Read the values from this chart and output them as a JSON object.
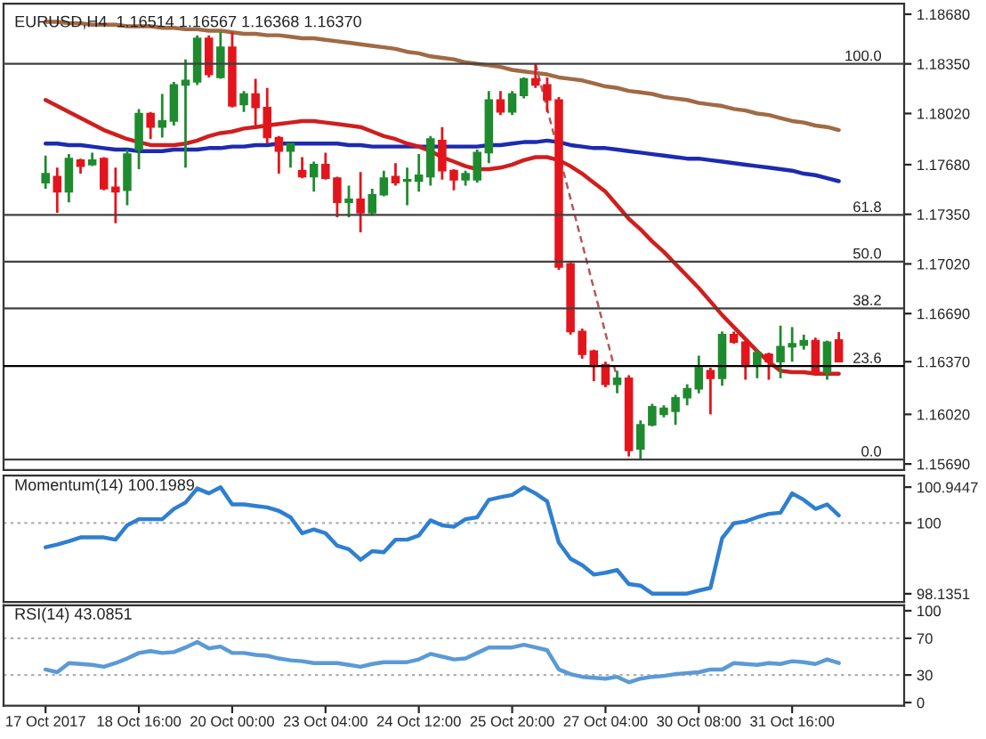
{
  "chart_data": [
    {
      "type": "candlestick",
      "title": "EURUSD,H4  1.16514 1.16567 1.16368 1.16370",
      "categories": [
        null,
        null,
        null,
        null,
        null,
        null,
        null,
        null,
        null,
        null,
        null,
        null,
        null,
        null,
        null,
        null,
        null,
        null,
        null,
        null,
        null,
        null,
        null,
        null,
        null,
        null,
        null,
        null,
        null,
        null,
        null,
        null,
        null,
        null,
        null,
        null,
        null,
        null,
        null,
        null,
        null,
        null,
        null,
        null,
        null,
        null,
        null,
        null,
        null,
        null,
        null,
        null,
        null,
        null,
        null,
        null,
        null,
        null,
        null,
        null,
        null,
        null,
        null,
        null,
        null,
        null,
        null,
        null,
        null
      ],
      "ohlc": [
        [
          1.1756,
          1.1774,
          1.1752,
          1.1762
        ],
        [
          1.176,
          1.1766,
          1.1736,
          1.175
        ],
        [
          1.175,
          1.1775,
          1.1743,
          1.1772
        ],
        [
          1.1771,
          1.1772,
          1.1762,
          1.1767
        ],
        [
          1.1768,
          1.1776,
          1.1767,
          1.1771
        ],
        [
          1.1772,
          1.1773,
          1.1751,
          1.1752
        ],
        [
          1.1753,
          1.1766,
          1.1729,
          1.175
        ],
        [
          1.1751,
          1.1778,
          1.1741,
          1.1775
        ],
        [
          1.1778,
          1.1805,
          1.1765,
          1.1802
        ],
        [
          1.1802,
          1.1803,
          1.1785,
          1.1793
        ],
        [
          1.1793,
          1.1815,
          1.1786,
          1.1797
        ],
        [
          1.1797,
          1.1823,
          1.1794,
          1.1821
        ],
        [
          1.1821,
          1.1838,
          1.1766,
          1.1824
        ],
        [
          1.1823,
          1.1854,
          1.1821,
          1.1852
        ],
        [
          1.1852,
          1.1854,
          1.1826,
          1.1828
        ],
        [
          1.1826,
          1.1856,
          1.1825,
          1.1846
        ],
        [
          1.1846,
          1.1856,
          1.1806,
          1.1807
        ],
        [
          1.1808,
          1.1817,
          1.1803,
          1.1815
        ],
        [
          1.1815,
          1.1825,
          1.1793,
          1.1806
        ],
        [
          1.1806,
          1.1819,
          1.1782,
          1.1786
        ],
        [
          1.1786,
          1.1787,
          1.1762,
          1.1777
        ],
        [
          1.1777,
          1.1782,
          1.1766,
          1.1782
        ],
        [
          1.1764,
          1.1773,
          1.1759,
          1.176
        ],
        [
          1.176,
          1.177,
          1.175,
          1.1768
        ],
        [
          1.1768,
          1.1776,
          1.1758,
          1.1759
        ],
        [
          1.1759,
          1.176,
          1.1733,
          1.1743
        ],
        [
          1.1743,
          1.1754,
          1.1733,
          1.1745
        ],
        [
          1.1745,
          1.1763,
          1.1723,
          1.1736
        ],
        [
          1.1736,
          1.1752,
          1.1734,
          1.1748
        ],
        [
          1.1748,
          1.1764,
          1.1747,
          1.1759
        ],
        [
          1.176,
          1.1769,
          1.1754,
          1.1756
        ],
        [
          1.1757,
          1.1766,
          1.1741,
          1.1758
        ],
        [
          1.1757,
          1.1775,
          1.175,
          1.1761
        ],
        [
          1.176,
          1.1787,
          1.1754,
          1.1785
        ],
        [
          1.1784,
          1.1793,
          1.1758,
          1.1764
        ],
        [
          1.1764,
          1.1765,
          1.1751,
          1.1758
        ],
        [
          1.1758,
          1.1764,
          1.1754,
          1.1762
        ],
        [
          1.1758,
          1.1778,
          1.1756,
          1.1776
        ],
        [
          1.1776,
          1.1817,
          1.1769,
          1.1811
        ],
        [
          1.1811,
          1.1817,
          1.1801,
          1.1803
        ],
        [
          1.1803,
          1.1817,
          1.1801,
          1.1815
        ],
        [
          1.1814,
          1.1826,
          1.1812,
          1.1825
        ],
        [
          1.1825,
          1.1835,
          1.1819,
          1.1821
        ],
        [
          1.1821,
          1.1826,
          1.1803,
          1.1811
        ],
        [
          1.1811,
          1.1813,
          1.1698,
          1.17
        ],
        [
          1.1702,
          1.1704,
          1.1655,
          1.1657
        ],
        [
          1.1657,
          1.1659,
          1.1639,
          1.1642
        ],
        [
          1.1644,
          1.1645,
          1.1624,
          1.1634
        ],
        [
          1.1635,
          1.1637,
          1.162,
          1.1622
        ],
        [
          1.1622,
          1.1631,
          1.1616,
          1.1626
        ],
        [
          1.1626,
          1.1628,
          1.1574,
          1.1578
        ],
        [
          1.1579,
          1.1598,
          1.1572,
          1.1595
        ],
        [
          1.1595,
          1.1609,
          1.1594,
          1.1607
        ],
        [
          1.1602,
          1.1608,
          1.16,
          1.1606
        ],
        [
          1.1604,
          1.1615,
          1.1595,
          1.1613
        ],
        [
          1.1613,
          1.1622,
          1.1608,
          1.1619
        ],
        [
          1.1619,
          1.1641,
          1.1616,
          1.1633
        ],
        [
          1.1631,
          1.1633,
          1.1602,
          1.1626
        ],
        [
          1.1626,
          1.1657,
          1.1621,
          1.1655
        ],
        [
          1.1655,
          1.1657,
          1.1649,
          1.165
        ],
        [
          1.165,
          1.1651,
          1.1625,
          1.1634
        ],
        [
          1.1635,
          1.1645,
          1.1626,
          1.1643
        ],
        [
          1.1642,
          1.1643,
          1.1625,
          1.1637
        ],
        [
          1.1637,
          1.1661,
          1.1626,
          1.1647
        ],
        [
          1.1647,
          1.166,
          1.1637,
          1.1649
        ],
        [
          1.1648,
          1.1655,
          1.1645,
          1.1651
        ],
        [
          1.1651,
          1.1653,
          1.1628,
          1.163
        ],
        [
          1.163,
          1.1651,
          1.1625,
          1.165
        ],
        [
          1.16514,
          1.16567,
          1.16368,
          1.1637
        ]
      ],
      "series": [
        {
          "type": "line",
          "color": "#a06a45",
          "values": [
            1.1863,
            1.1863,
            1.1862,
            1.1862,
            1.1861,
            1.1861,
            1.1861,
            1.186,
            1.186,
            1.186,
            1.1859,
            1.1859,
            1.1858,
            1.1858,
            1.1857,
            1.1857,
            1.1856,
            1.1855,
            1.1855,
            1.1854,
            1.1854,
            1.1853,
            1.1852,
            1.1852,
            1.1851,
            1.185,
            1.1849,
            1.1848,
            1.1847,
            1.1846,
            1.1845,
            1.1843,
            1.1842,
            1.184,
            1.1839,
            1.1838,
            1.1836,
            1.1835,
            1.1834,
            1.1833,
            1.1831,
            1.183,
            1.1829,
            1.1828,
            1.1826,
            1.1825,
            1.1824,
            1.1822,
            1.182,
            1.1819,
            1.1817,
            1.1816,
            1.1815,
            1.1813,
            1.1812,
            1.1811,
            1.1809,
            1.1808,
            1.1807,
            1.1805,
            1.1804,
            1.1802,
            1.1801,
            1.1799,
            1.1797,
            1.1796,
            1.1794,
            1.1793,
            1.1791
          ]
        },
        {
          "type": "line",
          "color": "#1c2bb0",
          "values": [
            1.1782,
            1.1782,
            1.1781,
            1.1781,
            1.178,
            1.1779,
            1.1778,
            1.1778,
            1.1777,
            1.1777,
            1.1777,
            1.1778,
            1.1778,
            1.1778,
            1.1779,
            1.1779,
            1.178,
            1.178,
            1.1781,
            1.1781,
            1.1782,
            1.1782,
            1.1782,
            1.1782,
            1.1782,
            1.1782,
            1.1781,
            1.1781,
            1.178,
            1.178,
            1.178,
            1.178,
            1.178,
            1.178,
            1.178,
            1.178,
            1.178,
            1.178,
            1.1781,
            1.1781,
            1.1782,
            1.1783,
            1.1783,
            1.1784,
            1.1783,
            1.1781,
            1.178,
            1.1779,
            1.1779,
            1.1778,
            1.1777,
            1.1776,
            1.1775,
            1.1774,
            1.1773,
            1.1772,
            1.1772,
            1.1771,
            1.177,
            1.1769,
            1.1768,
            1.1767,
            1.1766,
            1.1765,
            1.1764,
            1.1762,
            1.1761,
            1.1759,
            1.1757
          ]
        },
        {
          "type": "line",
          "color": "#d01e1e",
          "values": [
            1.1811,
            1.1807,
            1.1803,
            1.1799,
            1.1795,
            1.1791,
            1.1788,
            1.1785,
            1.1783,
            1.1781,
            1.1781,
            1.1781,
            1.1782,
            1.1784,
            1.1787,
            1.1789,
            1.179,
            1.1792,
            1.1793,
            1.1794,
            1.1795,
            1.1796,
            1.1797,
            1.1797,
            1.1796,
            1.1795,
            1.1794,
            1.1793,
            1.179,
            1.1787,
            1.1785,
            1.1782,
            1.178,
            1.1777,
            1.1773,
            1.177,
            1.1767,
            1.1765,
            1.1765,
            1.1766,
            1.1768,
            1.1771,
            1.1773,
            1.1773,
            1.1771,
            1.1767,
            1.1762,
            1.1756,
            1.175,
            1.1741,
            1.1732,
            1.1725,
            1.1717,
            1.171,
            1.1702,
            1.1694,
            1.1686,
            1.1677,
            1.1668,
            1.166,
            1.1652,
            1.1644,
            1.1637,
            1.1631,
            1.163,
            1.163,
            1.1629,
            1.1629,
            1.1629
          ]
        },
        {
          "type": "line",
          "color": "#b05a5a",
          "line_style": "dashed",
          "values": [
            null,
            null,
            null,
            null,
            null,
            null,
            null,
            null,
            null,
            null,
            null,
            null,
            null,
            null,
            null,
            null,
            null,
            null,
            null,
            null,
            null,
            null,
            null,
            null,
            null,
            null,
            null,
            null,
            null,
            null,
            null,
            null,
            null,
            null,
            null,
            null,
            null,
            null,
            null,
            null,
            null,
            null,
            1.1835,
            null,
            null,
            null,
            null,
            null,
            null,
            1.1626,
            null,
            null,
            null,
            null,
            null,
            null,
            null,
            null,
            null,
            null,
            null,
            null,
            null,
            null,
            null,
            null,
            null,
            null,
            null
          ]
        }
      ],
      "ref_lines": [
        {
          "axis": "y2",
          "value": 100,
          "label": "100.0",
          "color": "#404040"
        },
        {
          "axis": "y2",
          "value": 61.8,
          "label": "61.8",
          "color": "#404040"
        },
        {
          "axis": "y2",
          "value": 50,
          "label": "50.0",
          "color": "#404040"
        },
        {
          "axis": "y2",
          "value": 38.2,
          "label": "38.2",
          "color": "#404040"
        },
        {
          "axis": "y2",
          "value": 23.6,
          "label": "23.6",
          "color": "#000000"
        },
        {
          "axis": "y2",
          "value": 0,
          "label": "0.0",
          "color": "#404040"
        }
      ],
      "ylim": [
        1.1565,
        1.1875
      ],
      "y2lim": [
        -2.66,
        115.21
      ],
      "yticks": [
        {
          "value": 1.1868,
          "label": "1.18680"
        },
        {
          "value": 1.1835,
          "label": "1.18350"
        },
        {
          "value": 1.1802,
          "label": "1.18020"
        },
        {
          "value": 1.1768,
          "label": "1.17680"
        },
        {
          "value": 1.1735,
          "label": "1.17350"
        },
        {
          "value": 1.1702,
          "label": "1.17020"
        },
        {
          "value": 1.1669,
          "label": "1.16690"
        },
        {
          "value": 1.1637,
          "label": "1.16370"
        },
        {
          "value": 1.1602,
          "label": "1.16020"
        },
        {
          "value": 1.1569,
          "label": "1.15690"
        }
      ],
      "tick_labels": "y"
    },
    {
      "type": "line",
      "title": "Momentum(14) 100.1989",
      "categories": [
        null,
        null,
        null,
        null,
        null,
        null,
        null,
        null,
        null,
        null,
        null,
        null,
        null,
        null,
        null,
        null,
        null,
        null,
        null,
        null,
        null,
        null,
        null,
        null,
        null,
        null,
        null,
        null,
        null,
        null,
        null,
        null,
        null,
        null,
        null,
        null,
        null,
        null,
        null,
        null,
        null,
        null,
        null,
        null,
        null,
        null,
        null,
        null,
        null,
        null,
        null,
        null,
        null,
        null,
        null,
        null,
        null,
        null,
        null,
        null,
        null,
        null,
        null,
        null,
        null,
        null,
        null,
        null,
        null
      ],
      "series": [
        {
          "color": "#2f7fd0",
          "values": [
            99.36,
            99.43,
            99.52,
            99.62,
            99.62,
            99.62,
            99.56,
            99.94,
            100.1,
            100.1,
            100.1,
            100.37,
            100.54,
            100.91,
            100.78,
            100.94,
            100.49,
            100.49,
            100.45,
            100.41,
            100.32,
            100.15,
            99.73,
            99.83,
            99.73,
            99.4,
            99.31,
            99.03,
            99.26,
            99.23,
            99.56,
            99.56,
            99.67,
            100.07,
            99.94,
            99.9,
            100.1,
            100.15,
            100.61,
            100.68,
            100.74,
            100.94,
            100.78,
            100.57,
            99.48,
            99.06,
            98.89,
            98.64,
            98.69,
            98.76,
            98.39,
            98.35,
            98.14,
            98.14,
            98.14,
            98.14,
            98.22,
            98.29,
            99.6,
            99.99,
            100.04,
            100.15,
            100.24,
            100.27,
            100.78,
            100.61,
            100.37,
            100.49,
            100.2
          ]
        }
      ],
      "ref_lines": [
        {
          "axis": "y",
          "value": 100,
          "color": "#b0b0b0",
          "line_style": "dotted"
        }
      ],
      "ylim": [
        97.92,
        101.25
      ],
      "yticks": [
        100.9447,
        100,
        98.1351
      ],
      "tick_labels": "y"
    },
    {
      "type": "line",
      "title": "RSI(14) 43.0851",
      "categories": [
        "17 Oct 2017",
        null,
        null,
        null,
        null,
        null,
        null,
        null,
        "18 Oct 16:00",
        null,
        null,
        null,
        null,
        null,
        null,
        null,
        "20 Oct 00:00",
        null,
        null,
        null,
        null,
        null,
        null,
        null,
        "23 Oct 04:00",
        null,
        null,
        null,
        null,
        null,
        null,
        null,
        "24 Oct 12:00",
        null,
        null,
        null,
        null,
        null,
        null,
        null,
        "25 Oct 20:00",
        null,
        null,
        null,
        null,
        null,
        null,
        null,
        "27 Oct 04:00",
        null,
        null,
        null,
        null,
        null,
        null,
        null,
        "30 Oct 08:00",
        null,
        null,
        null,
        null,
        null,
        null,
        null,
        "31 Oct 16:00",
        null,
        null,
        null,
        null
      ],
      "series": [
        {
          "color": "#5a9ad6",
          "values": [
            36,
            33,
            43,
            42,
            41,
            39,
            43,
            48,
            54,
            56,
            54,
            55,
            60,
            66,
            59,
            61,
            54,
            54,
            52,
            51,
            48,
            46,
            45,
            43,
            43,
            43,
            41,
            39,
            42,
            44,
            44,
            44,
            47,
            53,
            50,
            47,
            48,
            54,
            60,
            60,
            60,
            63,
            60,
            57,
            36,
            31,
            28,
            27,
            26,
            28,
            22,
            26,
            28,
            29,
            31,
            32,
            33,
            36,
            36,
            43,
            42,
            41,
            43,
            42,
            45,
            44,
            42,
            47,
            43
          ]
        }
      ],
      "ref_lines": [
        {
          "axis": "y",
          "value": 70,
          "color": "#b0b0b0",
          "line_style": "dotted"
        },
        {
          "axis": "y",
          "value": 30,
          "color": "#b0b0b0",
          "line_style": "dotted"
        }
      ],
      "ylim": [
        -3.5,
        106
      ],
      "yticks": [
        100,
        70,
        30,
        0
      ]
    }
  ]
}
